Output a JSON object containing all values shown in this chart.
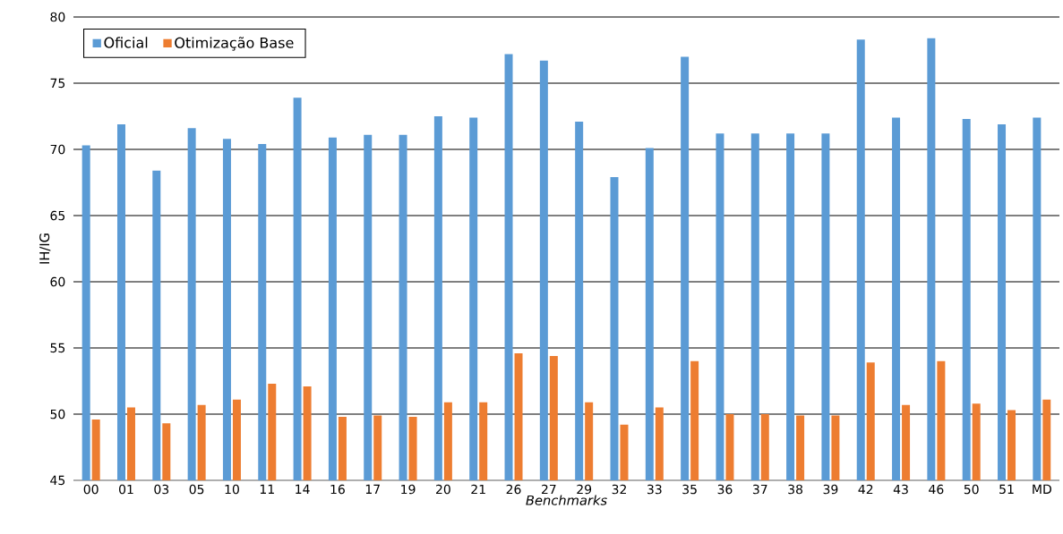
{
  "chart_data": {
    "type": "bar",
    "xlabel": "Benchmarks",
    "ylabel": "IH/IG",
    "categories": [
      "00",
      "01",
      "03",
      "05",
      "10",
      "11",
      "14",
      "16",
      "17",
      "19",
      "20",
      "21",
      "26",
      "27",
      "29",
      "32",
      "33",
      "35",
      "36",
      "37",
      "38",
      "39",
      "42",
      "43",
      "46",
      "50",
      "51",
      "MD"
    ],
    "series": [
      {
        "name": "Oficial",
        "color": "#5b9bd5",
        "values": [
          70.3,
          71.9,
          68.4,
          71.6,
          70.8,
          70.4,
          73.9,
          70.9,
          71.1,
          71.1,
          72.5,
          72.4,
          77.2,
          76.7,
          72.1,
          67.9,
          70.1,
          77.0,
          71.2,
          71.2,
          71.2,
          71.2,
          78.3,
          72.4,
          78.4,
          72.3,
          71.9,
          72.4
        ]
      },
      {
        "name": "Otimização Base",
        "color": "#ed7d31",
        "values": [
          49.6,
          50.5,
          49.3,
          50.7,
          51.1,
          52.3,
          52.1,
          49.8,
          49.9,
          49.8,
          50.9,
          50.9,
          54.6,
          54.4,
          50.9,
          49.2,
          50.5,
          54.0,
          50.0,
          50.0,
          49.9,
          49.9,
          53.9,
          50.7,
          54.0,
          50.8,
          50.3,
          51.1
        ]
      }
    ],
    "ylim": [
      45,
      80
    ],
    "yticks": [
      45,
      50,
      55,
      60,
      65,
      70,
      75,
      80
    ],
    "grid": "y",
    "legend": "top left"
  }
}
